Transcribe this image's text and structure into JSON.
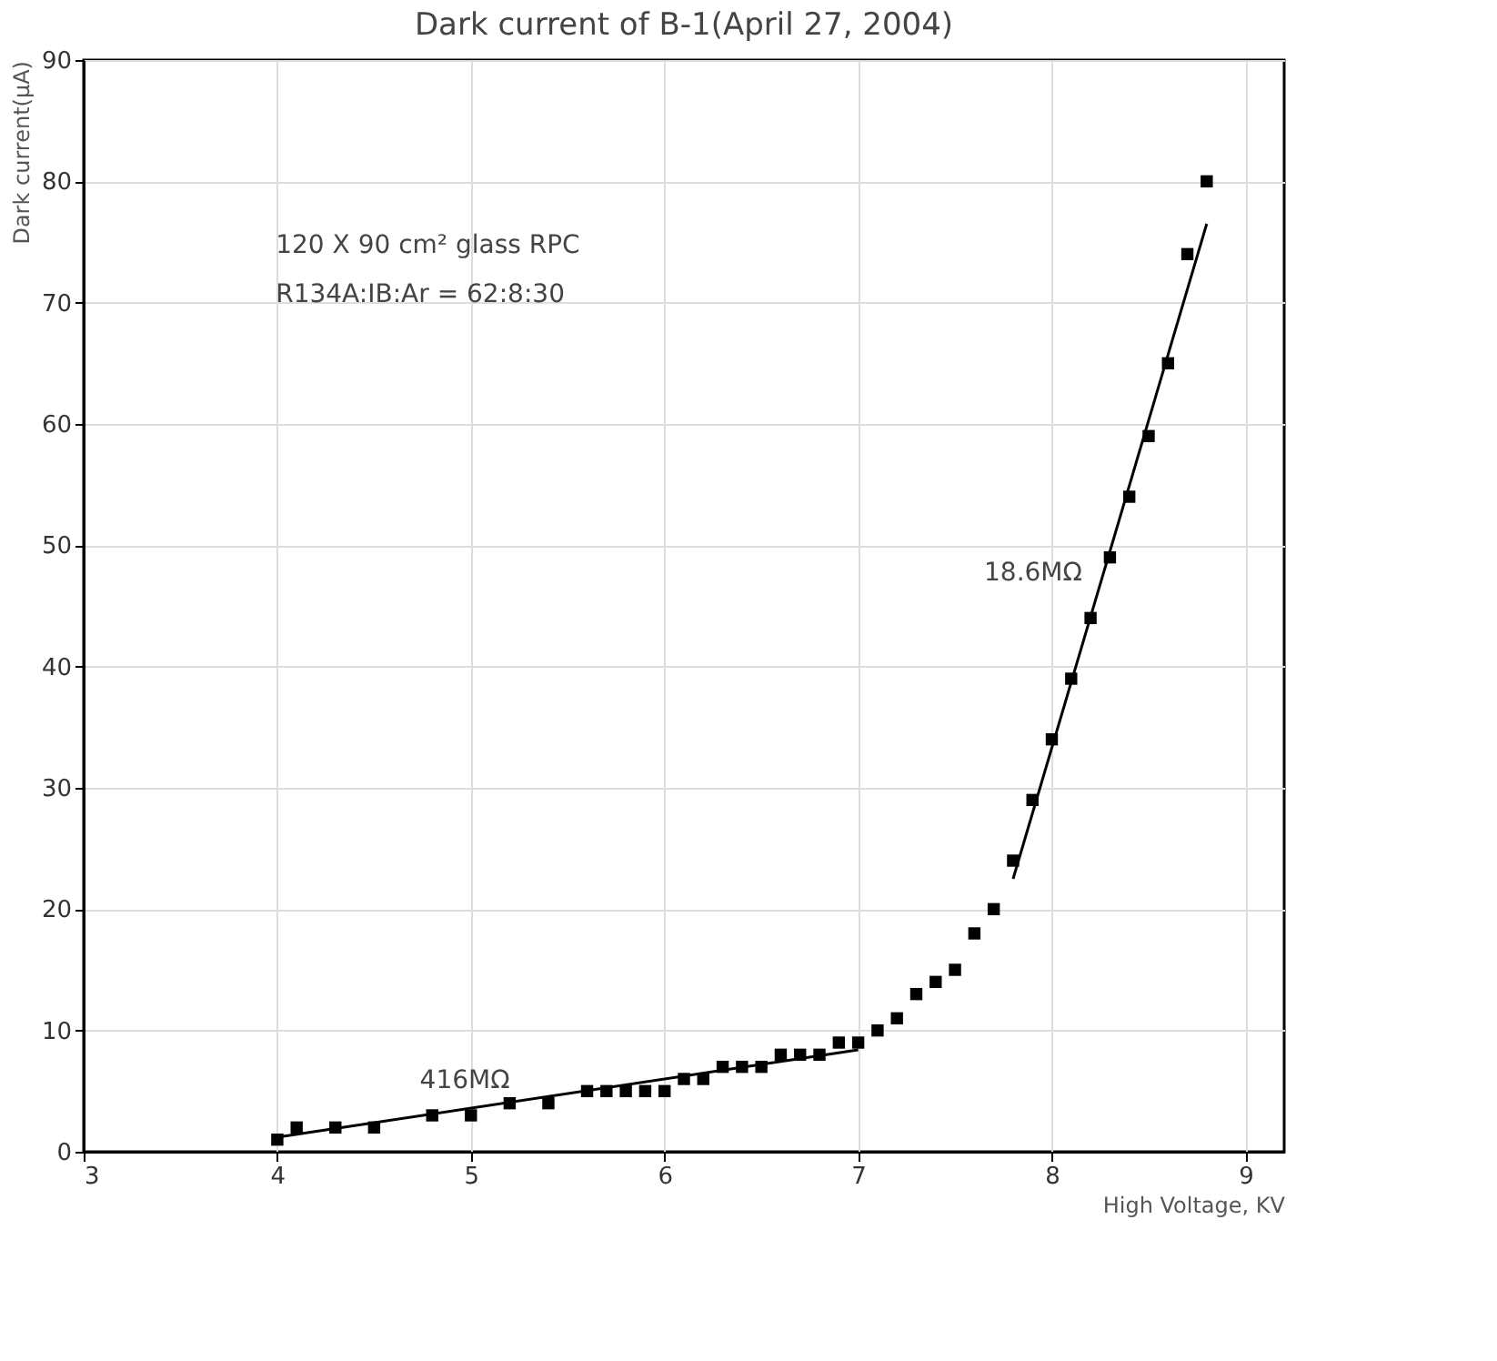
{
  "chart_data": {
    "type": "scatter",
    "title": "Dark current of B-1(April 27, 2004)",
    "xlabel": "High Voltage, KV",
    "ylabel": "Dark current(μA)",
    "x": [
      4.0,
      4.1,
      4.3,
      4.5,
      4.8,
      5.0,
      5.2,
      5.4,
      5.6,
      5.7,
      5.8,
      5.9,
      6.0,
      6.1,
      6.2,
      6.3,
      6.4,
      6.5,
      6.6,
      6.7,
      6.8,
      6.9,
      7.0,
      7.1,
      7.2,
      7.3,
      7.4,
      7.5,
      7.6,
      7.7,
      7.8,
      7.9,
      8.0,
      8.1,
      8.2,
      8.3,
      8.4,
      8.5,
      8.6,
      8.7,
      8.8
    ],
    "series": [
      {
        "color": "#000000",
        "marker": "square",
        "values": [
          1,
          2,
          2,
          2,
          3,
          3,
          4,
          4,
          5,
          5,
          5,
          5,
          5,
          6,
          6,
          7,
          7,
          7,
          8,
          8,
          8,
          9,
          9,
          10,
          11,
          13,
          14,
          15,
          18,
          20,
          24,
          29,
          34,
          39,
          44,
          49,
          54,
          59,
          65,
          74,
          80
        ]
      },
      {
        "type": "line",
        "color": "#000000",
        "marker": "none",
        "line_style": "solid",
        "x": [
          4.0,
          7.0
        ],
        "values": [
          1.2,
          8.4
        ]
      },
      {
        "type": "line",
        "color": "#000000",
        "marker": "none",
        "line_style": "solid",
        "x": [
          7.8,
          8.8
        ],
        "values": [
          22.5,
          76.5
        ]
      }
    ],
    "xlim": [
      3,
      9.2
    ],
    "xticks": [
      3,
      4,
      5,
      6,
      7,
      8,
      9
    ],
    "ylim": [
      0,
      90
    ],
    "yticks": [
      0,
      10,
      20,
      30,
      40,
      50,
      60,
      70,
      80,
      90
    ],
    "grid": true,
    "annotations": [
      "120 X 90 cm² glass RPC",
      "R134A:IB:Ar = 62:8:30",
      "416MΩ",
      "18.6MΩ"
    ]
  }
}
